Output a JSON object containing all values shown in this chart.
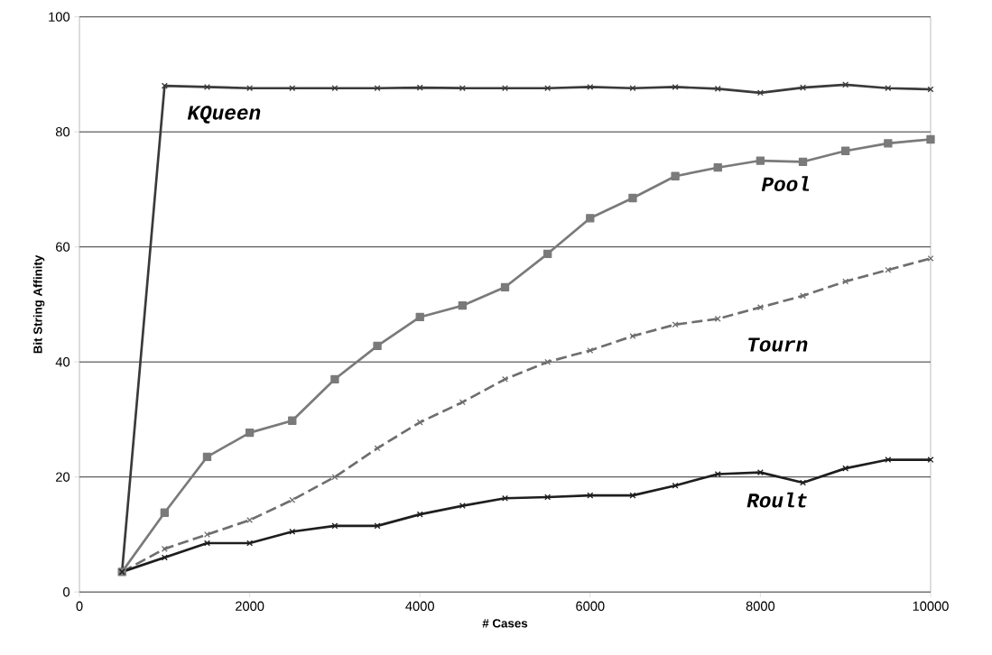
{
  "chart_data": {
    "type": "line",
    "xlabel": "# Cases",
    "ylabel": "Bit String Affinity",
    "x": [
      500,
      1000,
      1500,
      2000,
      2500,
      3000,
      3500,
      4000,
      4500,
      5000,
      5500,
      6000,
      6500,
      7000,
      7500,
      8000,
      8500,
      9000,
      9500,
      10000
    ],
    "series": [
      {
        "name": "KQueen",
        "color": "#3a3a3a",
        "marker": "cross",
        "line_style": "solid",
        "values": [
          3.5,
          88,
          87.8,
          87.6,
          87.6,
          87.6,
          87.6,
          87.7,
          87.6,
          87.6,
          87.6,
          87.8,
          87.6,
          87.8,
          87.5,
          86.8,
          87.7,
          88.2,
          87.6,
          87.4
        ]
      },
      {
        "name": "Pool",
        "color": "#7a7a7a",
        "marker": "square",
        "line_style": "solid",
        "values": [
          3.5,
          13.8,
          23.5,
          27.7,
          29.8,
          37,
          42.8,
          47.8,
          49.8,
          53,
          58.8,
          65,
          68.5,
          72.3,
          73.8,
          75,
          74.8,
          76.7,
          78,
          78.7
        ]
      },
      {
        "name": "Tourn",
        "color": "#6e6e6e",
        "marker": "cross",
        "line_style": "dashed",
        "values": [
          3.5,
          7.5,
          10,
          12.5,
          16,
          20,
          25,
          29.5,
          33,
          37,
          40,
          42,
          44.5,
          46.5,
          47.5,
          49.5,
          51.5,
          54,
          56,
          58
        ]
      },
      {
        "name": "Roult",
        "color": "#1e1e1e",
        "marker": "cross",
        "line_style": "solid",
        "values": [
          3.5,
          6,
          8.5,
          8.5,
          10.5,
          11.5,
          11.5,
          13.5,
          15,
          16.3,
          16.5,
          16.8,
          16.8,
          18.5,
          20.5,
          20.8,
          19,
          21.5,
          23,
          23
        ]
      }
    ],
    "xlim": [
      0,
      10000
    ],
    "ylim": [
      0,
      100
    ],
    "xticks": [
      0,
      2000,
      4000,
      6000,
      8000,
      10000
    ],
    "yticks": [
      0,
      20,
      40,
      60,
      80,
      100
    ],
    "grid": "y",
    "legend": false
  }
}
